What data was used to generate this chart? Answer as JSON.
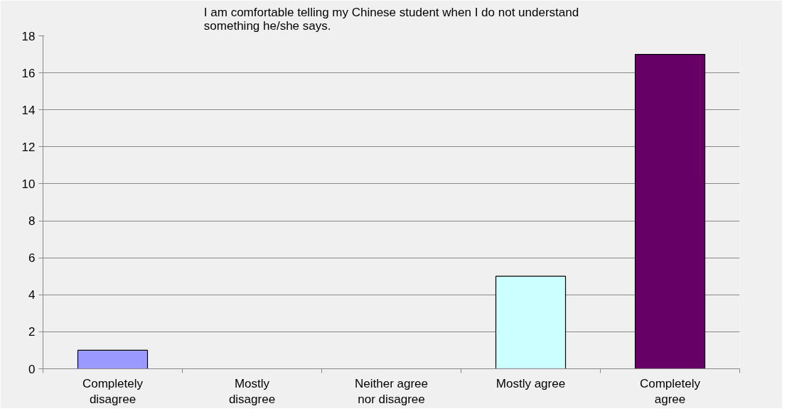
{
  "chart_data": {
    "type": "bar",
    "title": "I am comfortable telling my Chinese student when I do not understand something he/she says.",
    "categories": [
      "Completely disagree",
      "Mostly disagree",
      "Neither agree nor disagree",
      "Mostly agree",
      "Completely agree"
    ],
    "values": [
      1,
      0,
      0,
      5,
      17
    ],
    "colors": [
      "#9999ff",
      null,
      null,
      "#ccffff",
      "#660066"
    ],
    "ylim": [
      0,
      18
    ],
    "yticks": [
      0,
      2,
      4,
      6,
      8,
      10,
      12,
      14,
      16,
      18
    ],
    "grid": "y"
  }
}
